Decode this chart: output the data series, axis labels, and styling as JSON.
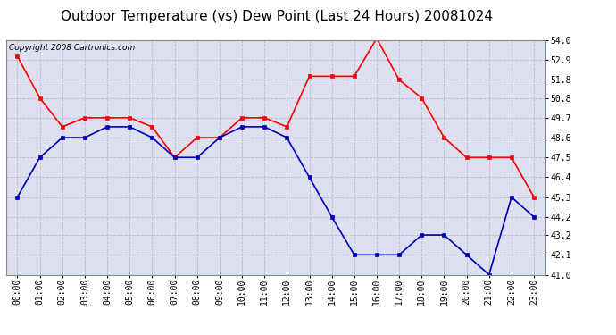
{
  "title": "Outdoor Temperature (vs) Dew Point (Last 24 Hours) 20081024",
  "copyright": "Copyright 2008 Cartronics.com",
  "hours": [
    "00:00",
    "01:00",
    "02:00",
    "03:00",
    "04:00",
    "05:00",
    "06:00",
    "07:00",
    "08:00",
    "09:00",
    "10:00",
    "11:00",
    "12:00",
    "13:00",
    "14:00",
    "15:00",
    "16:00",
    "17:00",
    "18:00",
    "19:00",
    "20:00",
    "21:00",
    "22:00",
    "23:00"
  ],
  "temp": [
    53.1,
    50.8,
    49.2,
    49.7,
    49.7,
    49.7,
    49.2,
    47.5,
    48.6,
    48.6,
    49.7,
    49.7,
    49.2,
    52.0,
    52.0,
    52.0,
    54.1,
    51.8,
    50.8,
    48.6,
    47.5,
    47.5,
    47.5,
    45.3
  ],
  "dew": [
    45.3,
    47.5,
    48.6,
    48.6,
    49.2,
    49.2,
    48.6,
    47.5,
    47.5,
    48.6,
    49.2,
    49.2,
    48.6,
    46.4,
    44.2,
    42.1,
    42.1,
    42.1,
    43.2,
    43.2,
    42.1,
    41.0,
    45.3,
    44.2
  ],
  "ylim": [
    41.0,
    54.0
  ],
  "yticks": [
    41.0,
    42.1,
    43.2,
    44.2,
    45.3,
    46.4,
    47.5,
    48.6,
    49.7,
    50.8,
    51.8,
    52.9,
    54.0
  ],
  "temp_color": "#ff0000",
  "dew_color": "#0000bb",
  "bg_color": "#ffffff",
  "plot_bg_color": "#dde0ee",
  "grid_color": "#bbbbcc",
  "title_fontsize": 11,
  "copyright_fontsize": 6.5,
  "tick_fontsize": 7,
  "ytick_fontsize": 7
}
